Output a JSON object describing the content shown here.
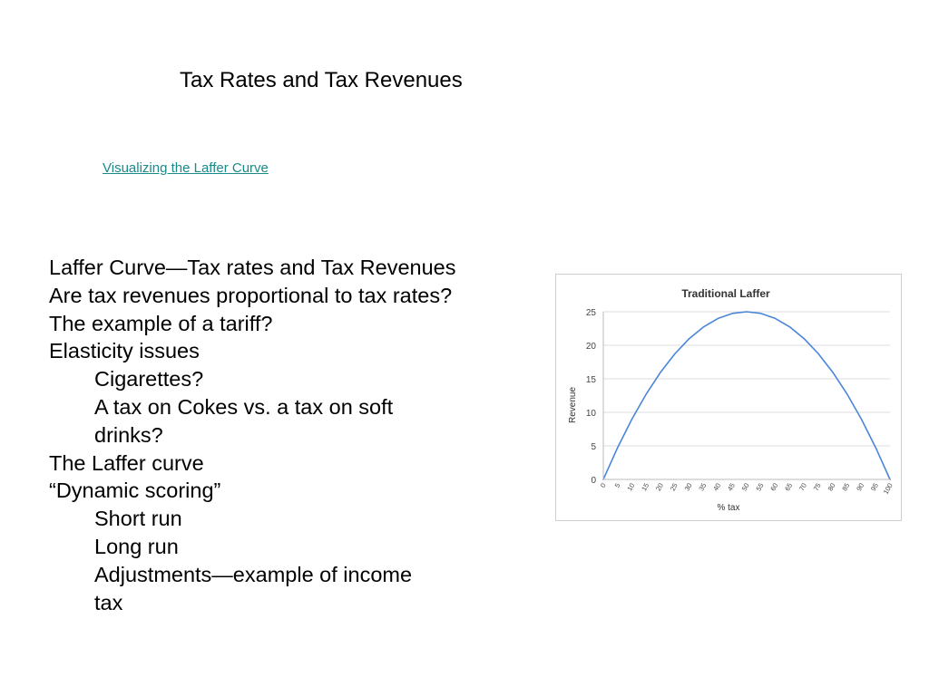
{
  "slide": {
    "title": "Tax Rates and Tax Revenues",
    "link_text": "Visualizing the Laffer Curve"
  },
  "bullets": [
    {
      "text": "Laffer Curve—Tax rates and Tax Revenues",
      "level": 1
    },
    {
      "text": "Are tax revenues proportional to tax rates?",
      "level": 1
    },
    {
      "text": "The example of a tariff?",
      "level": 1
    },
    {
      "text": "Elasticity issues",
      "level": 1
    },
    {
      "text": "Cigarettes?",
      "level": 2
    },
    {
      "text": "A tax on Cokes vs. a tax on soft drinks?",
      "level": 2
    },
    {
      "text": "The Laffer curve",
      "level": 1
    },
    {
      "text": "“Dynamic scoring”",
      "level": 1
    },
    {
      "text": "Short run",
      "level": 2
    },
    {
      "text": "Long run",
      "level": 2
    },
    {
      "text": "Adjustments—example of income tax",
      "level": 2
    }
  ],
  "chart_data": {
    "type": "line",
    "title": "Traditional Laffer",
    "xlabel": "% tax",
    "ylabel": "Revenue",
    "x": [
      0,
      5,
      10,
      15,
      20,
      25,
      30,
      35,
      40,
      45,
      50,
      55,
      60,
      65,
      70,
      75,
      80,
      85,
      90,
      95,
      100
    ],
    "x_tick_labels": [
      "0",
      "5",
      "10",
      "15",
      "20",
      "25",
      "30",
      "35",
      "40",
      "45",
      "50",
      "55",
      "60",
      "65",
      "70",
      "75",
      "80",
      "85",
      "90",
      "95",
      "100"
    ],
    "series": [
      {
        "values": [
          0,
          4.75,
          9,
          12.75,
          16,
          18.75,
          21,
          22.75,
          24,
          24.75,
          25,
          24.75,
          24,
          22.75,
          21,
          18.75,
          16,
          12.75,
          9,
          4.75,
          0
        ]
      }
    ],
    "y_ticks": [
      0,
      5,
      10,
      15,
      20,
      25
    ],
    "ylim": [
      0,
      25
    ],
    "xlim": [
      0,
      100
    ],
    "grid": true,
    "line_color": "#4a86d8",
    "grid_color": "#dddddd"
  }
}
